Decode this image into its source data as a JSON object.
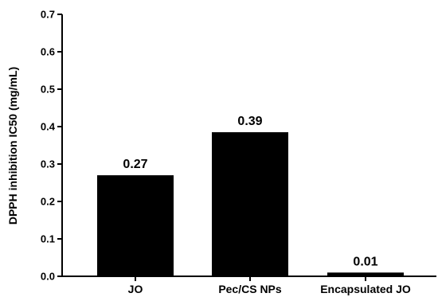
{
  "chart_data": {
    "type": "bar",
    "title": "",
    "xlabel": "",
    "ylabel": "DPPH inhibition IC50 (mg/mL)",
    "categories": [
      "JO",
      "Pec/CS NPs",
      "Encapsulated JO"
    ],
    "values": [
      0.27,
      0.385,
      0.01
    ],
    "data_labels": [
      "0.27",
      "0.39",
      "0.01"
    ],
    "ylim": [
      0,
      0.7
    ],
    "yticks": [
      "0.0",
      "0.1",
      "0.2",
      "0.3",
      "0.4",
      "0.5",
      "0.6",
      "0.7"
    ],
    "grid": false,
    "legend": "none",
    "bar_color": "#000000"
  }
}
